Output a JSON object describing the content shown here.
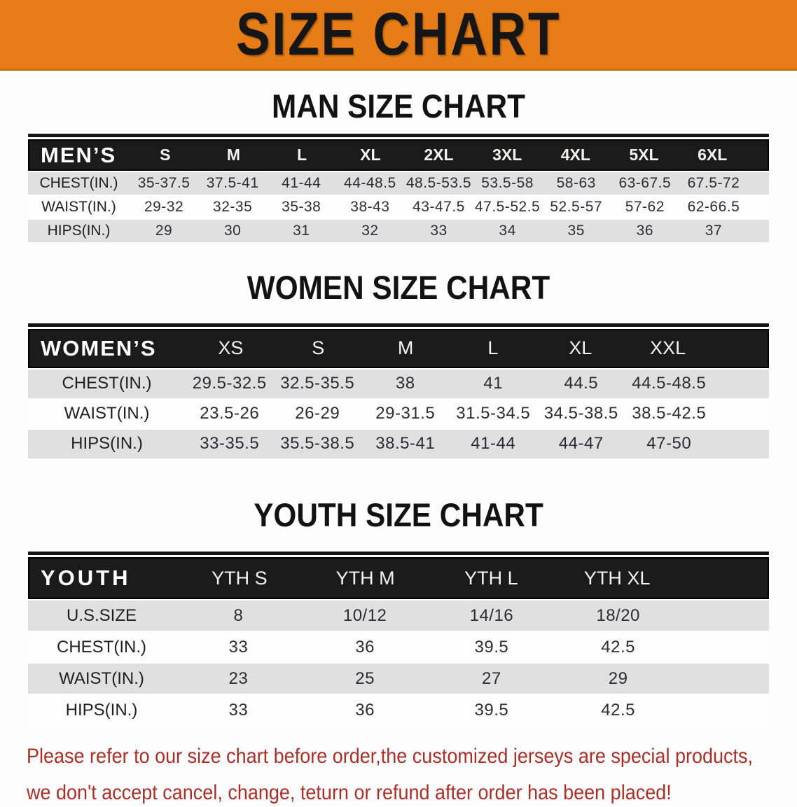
{
  "banner": {
    "title": "SIZE CHART",
    "background_color": "#E67D17"
  },
  "sections": {
    "men": {
      "heading": "MAN SIZE CHART",
      "header_label": "MEN’S",
      "sizes": [
        "S",
        "M",
        "L",
        "XL",
        "2XL",
        "3XL",
        "4XL",
        "5XL",
        "6XL"
      ],
      "rows": [
        {
          "label": "CHEST(IN.)",
          "values": [
            "35-37.5",
            "37.5-41",
            "41-44",
            "44-48.5",
            "48.5-53.5",
            "53.5-58",
            "58-63",
            "63-67.5",
            "67.5-72"
          ]
        },
        {
          "label": "WAIST(IN.)",
          "values": [
            "29-32",
            "32-35",
            "35-38",
            "38-43",
            "43-47.5",
            "47.5-52.5",
            "52.5-57",
            "57-62",
            "62-66.5"
          ]
        },
        {
          "label": "HIPS(IN.)",
          "values": [
            "29",
            "30",
            "31",
            "32",
            "33",
            "34",
            "35",
            "36",
            "37"
          ]
        }
      ]
    },
    "women": {
      "heading": "WOMEN SIZE CHART",
      "header_label": "WOMEN’S",
      "sizes": [
        "XS",
        "S",
        "M",
        "L",
        "XL",
        "XXL"
      ],
      "rows": [
        {
          "label": "CHEST(IN.)",
          "values": [
            "29.5-32.5",
            "32.5-35.5",
            "38",
            "41",
            "44.5",
            "44.5-48.5"
          ]
        },
        {
          "label": "WAIST(IN.)",
          "values": [
            "23.5-26",
            "26-29",
            "29-31.5",
            "31.5-34.5",
            "34.5-38.5",
            "38.5-42.5"
          ]
        },
        {
          "label": "HIPS(IN.)",
          "values": [
            "33-35.5",
            "35.5-38.5",
            "38.5-41",
            "41-44",
            "44-47",
            "47-50"
          ]
        }
      ]
    },
    "youth": {
      "heading": "YOUTH SIZE CHART",
      "header_label": "YOUTH",
      "sizes": [
        "YTH S",
        "YTH M",
        "YTH L",
        "YTH XL"
      ],
      "rows": [
        {
          "label": "U.S.SIZE",
          "values": [
            "8",
            "10/12",
            "14/16",
            "18/20"
          ]
        },
        {
          "label": "CHEST(IN.)",
          "values": [
            "33",
            "36",
            "39.5",
            "42.5"
          ]
        },
        {
          "label": "WAIST(IN.)",
          "values": [
            "23",
            "25",
            "27",
            "29"
          ]
        },
        {
          "label": "HIPS(IN.)",
          "values": [
            "33",
            "36",
            "39.5",
            "42.5"
          ]
        }
      ]
    }
  },
  "footer": {
    "line1": "Please refer to our size chart before order,the customized jerseys are special products,",
    "line2": "we don't accept cancel, change, teturn or refund after order has been placed!",
    "text_color": "#AA2F28"
  }
}
